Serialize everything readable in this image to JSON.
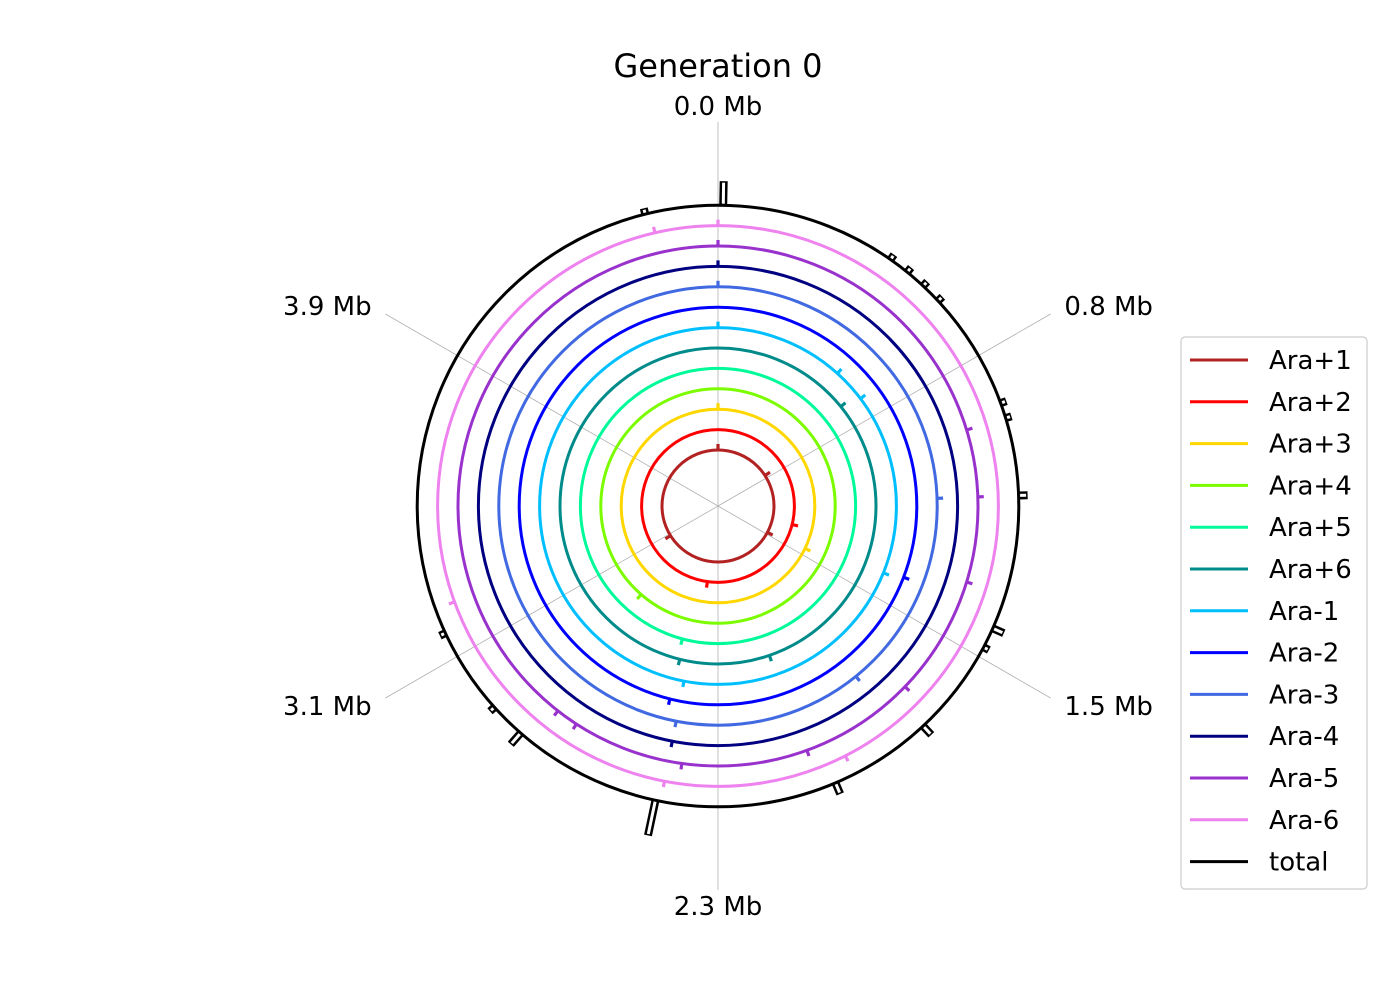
{
  "chart_data": {
    "type": "circular-genome",
    "title": "Generation 0",
    "angle_labels": [
      {
        "label": "0.0 Mb",
        "angle_deg": 0
      },
      {
        "label": "0.8 Mb",
        "angle_deg": 60
      },
      {
        "label": "1.5 Mb",
        "angle_deg": 120
      },
      {
        "label": "2.3 Mb",
        "angle_deg": 180
      },
      {
        "label": "3.1 Mb",
        "angle_deg": 240
      },
      {
        "label": "3.9 Mb",
        "angle_deg": 300
      }
    ],
    "series": [
      {
        "name": "Ara+1",
        "color": "#b22222",
        "marks": [
          {
            "angle": 0,
            "h": 1
          },
          {
            "angle": 57,
            "h": 1
          },
          {
            "angle": 118,
            "h": 1
          },
          {
            "angle": 238,
            "h": 1
          }
        ]
      },
      {
        "name": "Ara+2",
        "color": "#ff0000",
        "marks": [
          {
            "angle": 104,
            "h": 1
          },
          {
            "angle": 188,
            "h": 1
          }
        ]
      },
      {
        "name": "Ara+3",
        "color": "#ffd700",
        "marks": [
          {
            "angle": 0,
            "h": 1
          },
          {
            "angle": 116,
            "h": 1
          }
        ]
      },
      {
        "name": "Ara+4",
        "color": "#7cfc00",
        "marks": [
          {
            "angle": 221,
            "h": 1
          }
        ]
      },
      {
        "name": "Ara+5",
        "color": "#00fa9a",
        "marks": [
          {
            "angle": 195,
            "h": 1
          }
        ]
      },
      {
        "name": "Ara+6",
        "color": "#008b8b",
        "marks": [
          {
            "angle": 51,
            "h": 1
          },
          {
            "angle": 161,
            "h": 1
          },
          {
            "angle": 194,
            "h": 1
          }
        ]
      },
      {
        "name": "Ara-1",
        "color": "#00bfff",
        "marks": [
          {
            "angle": 0,
            "h": 1
          },
          {
            "angle": 42,
            "h": 1
          },
          {
            "angle": 53,
            "h": 1
          },
          {
            "angle": 112,
            "h": 1
          },
          {
            "angle": 191,
            "h": 1
          }
        ]
      },
      {
        "name": "Ara-2",
        "color": "#0000ff",
        "marks": [
          {
            "angle": 111,
            "h": 1
          },
          {
            "angle": 194,
            "h": 1
          }
        ]
      },
      {
        "name": "Ara-3",
        "color": "#4169e1",
        "marks": [
          {
            "angle": 0,
            "h": 1
          },
          {
            "angle": 88,
            "h": 1
          },
          {
            "angle": 141,
            "h": 1
          },
          {
            "angle": 191,
            "h": 1
          }
        ]
      },
      {
        "name": "Ara-4",
        "color": "#000080",
        "marks": [
          {
            "angle": 0,
            "h": 1
          },
          {
            "angle": 191,
            "h": 1
          }
        ]
      },
      {
        "name": "Ara-5",
        "color": "#9932cc",
        "marks": [
          {
            "angle": 0,
            "h": 1
          },
          {
            "angle": 73,
            "h": 1
          },
          {
            "angle": 88,
            "h": 1
          },
          {
            "angle": 107,
            "h": 1
          },
          {
            "angle": 134,
            "h": 1
          },
          {
            "angle": 160,
            "h": 1
          },
          {
            "angle": 188,
            "h": 1
          },
          {
            "angle": 213,
            "h": 1
          },
          {
            "angle": 218,
            "h": 1
          }
        ]
      },
      {
        "name": "Ara-6",
        "color": "#ee82ee",
        "marks": [
          {
            "angle": 0,
            "h": 1
          },
          {
            "angle": 153,
            "h": 1
          },
          {
            "angle": 191,
            "h": 1
          },
          {
            "angle": 250,
            "h": 1
          },
          {
            "angle": 347,
            "h": 1
          }
        ]
      },
      {
        "name": "total",
        "color": "#000000",
        "marks": [
          {
            "angle": 1,
            "h": 4
          },
          {
            "angle": 35,
            "h": 1
          },
          {
            "angle": 39,
            "h": 1
          },
          {
            "angle": 43,
            "h": 1
          },
          {
            "angle": 47,
            "h": 1
          },
          {
            "angle": 70,
            "h": 1
          },
          {
            "angle": 73,
            "h": 1
          },
          {
            "angle": 88,
            "h": 1.5
          },
          {
            "angle": 114,
            "h": 2
          },
          {
            "angle": 118,
            "h": 1
          },
          {
            "angle": 137,
            "h": 2
          },
          {
            "angle": 157,
            "h": 2
          },
          {
            "angle": 192,
            "h": 6
          },
          {
            "angle": 221,
            "h": 2.5
          },
          {
            "angle": 228,
            "h": 1
          },
          {
            "angle": 245,
            "h": 1
          },
          {
            "angle": 346,
            "h": 1
          }
        ]
      }
    ],
    "legend_position": "right",
    "grid": true
  }
}
